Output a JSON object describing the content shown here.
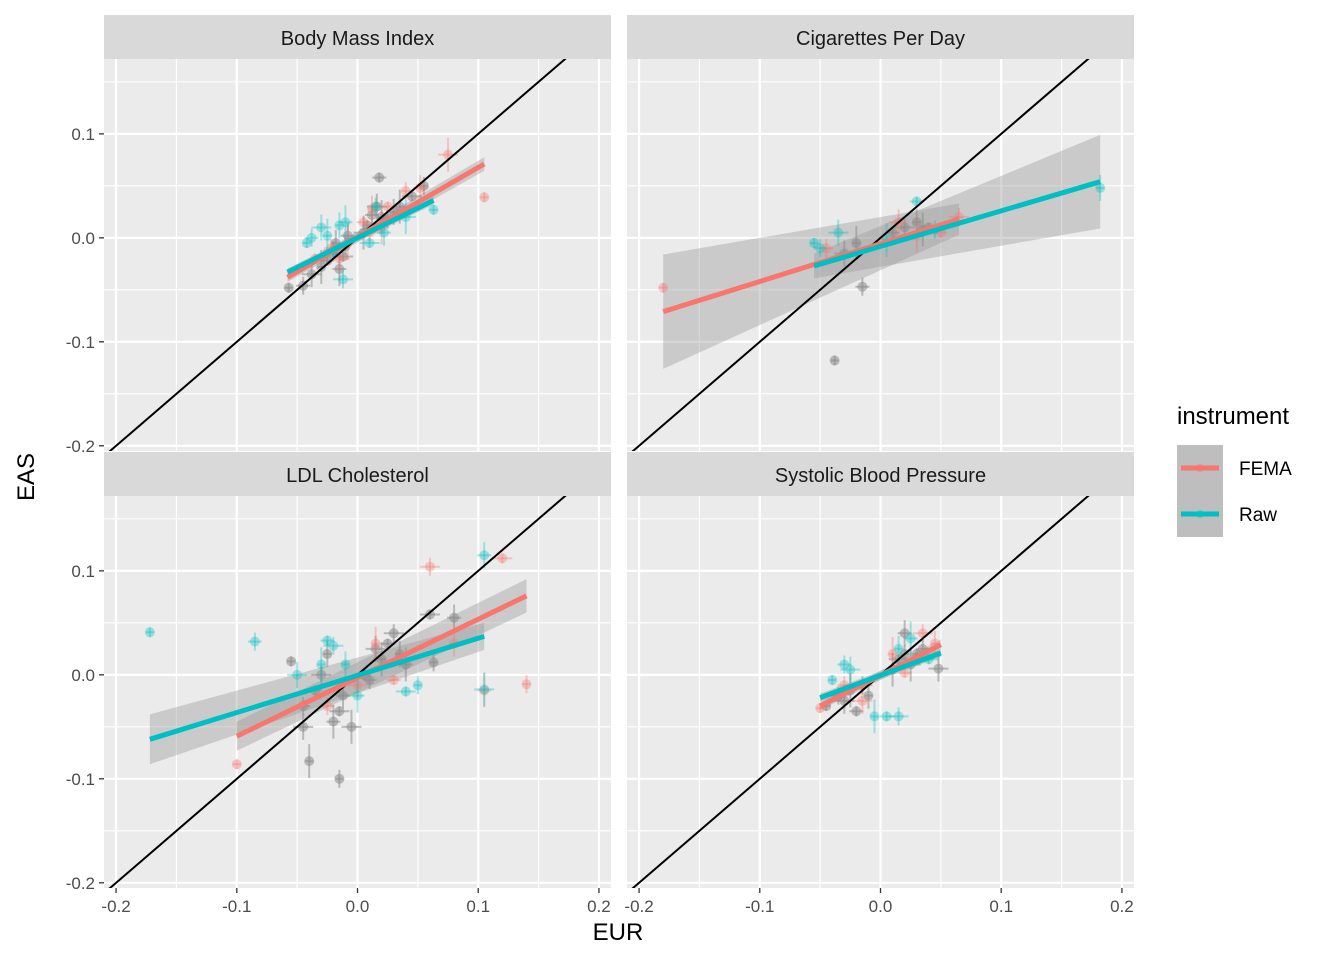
{
  "chart_data": {
    "type": "scatter",
    "facet_layout": "2x2",
    "x_label": "EUR",
    "y_label": "EAS",
    "xlim": [
      -0.21,
      0.21
    ],
    "ylim": [
      -0.205,
      0.172
    ],
    "x_ticks": [
      -0.2,
      -0.1,
      0.0,
      0.1,
      0.2
    ],
    "x_tick_labels": [
      "-0.2",
      "-0.1",
      "0.0",
      "0.1",
      "0.2"
    ],
    "y_ticks": [
      -0.2,
      -0.1,
      0.0,
      0.1
    ],
    "y_tick_labels": [
      "-0.2",
      "-0.1",
      "0.0",
      "0.1"
    ],
    "grid": true,
    "reference_line": {
      "slope": 1,
      "intercept": 0,
      "color": "#000000"
    },
    "legend": {
      "title": "instrument",
      "position": "right",
      "entries": [
        {
          "name": "FEMA",
          "color": "#F8766D"
        },
        {
          "name": "Raw",
          "color": "#00BFC4"
        }
      ]
    },
    "colors": {
      "FEMA": "#F8766D",
      "Raw": "#00BFC4",
      "overlap": "#8c8c8c",
      "panel_bg": "#EBEBEB",
      "strip_bg": "#D9D9D9"
    },
    "panels": [
      {
        "title": "Body Mass Index",
        "fits": [
          {
            "name": "FEMA",
            "x": [
              -0.058,
              0.105
            ],
            "y": [
              -0.038,
              0.071
            ],
            "band": [
              0.0045,
              0.0065
            ]
          },
          {
            "name": "Raw",
            "x": [
              -0.058,
              0.063
            ],
            "y": [
              -0.033,
              0.036
            ],
            "band": [
              0.0035,
              0.004
            ]
          }
        ],
        "points": [
          {
            "name": "overlap",
            "pts": [
              [
                -0.057,
                -0.048
              ],
              [
                -0.045,
                -0.046
              ],
              [
                -0.038,
                -0.035
              ],
              [
                -0.03,
                -0.028
              ],
              [
                -0.025,
                -0.022
              ],
              [
                -0.02,
                -0.012
              ],
              [
                -0.018,
                -0.005
              ],
              [
                -0.015,
                -0.03
              ],
              [
                -0.012,
                -0.018
              ],
              [
                -0.01,
                -0.008
              ],
              [
                -0.008,
                0.002
              ],
              [
                0.005,
                0.005
              ],
              [
                0.008,
                0.012
              ],
              [
                0.012,
                0.022
              ],
              [
                0.016,
                0.03
              ],
              [
                0.02,
                0.02
              ],
              [
                0.018,
                0.058
              ],
              [
                0.025,
                0.018
              ],
              [
                0.03,
                0.025
              ],
              [
                0.035,
                0.03
              ],
              [
                0.045,
                0.04
              ],
              [
                0.055,
                0.05
              ]
            ]
          },
          {
            "name": "FEMA",
            "pts": [
              [
                -0.035,
                -0.02
              ],
              [
                -0.022,
                -0.01
              ],
              [
                -0.015,
                -0.02
              ],
              [
                -0.008,
                -0.005
              ],
              [
                0.005,
                0.015
              ],
              [
                0.01,
                0.005
              ],
              [
                0.012,
                0.028
              ],
              [
                0.02,
                0.01
              ],
              [
                0.025,
                0.03
              ],
              [
                0.04,
                0.045
              ],
              [
                0.052,
                0.048
              ],
              [
                0.075,
                0.08
              ],
              [
                0.105,
                0.039
              ]
            ]
          },
          {
            "name": "Raw",
            "pts": [
              [
                -0.042,
                -0.005
              ],
              [
                -0.038,
                0.0
              ],
              [
                -0.03,
                0.01
              ],
              [
                -0.025,
                0.002
              ],
              [
                -0.02,
                -0.015
              ],
              [
                -0.012,
                -0.04
              ],
              [
                -0.015,
                0.012
              ],
              [
                -0.01,
                0.015
              ],
              [
                0.01,
                -0.005
              ],
              [
                0.015,
                0.03
              ],
              [
                0.022,
                0.005
              ],
              [
                0.04,
                0.02
              ],
              [
                0.063,
                0.027
              ]
            ]
          }
        ]
      },
      {
        "title": "Cigarettes Per Day",
        "fits": [
          {
            "name": "FEMA",
            "x": [
              -0.18,
              0.065
            ],
            "y": [
              -0.071,
              0.018
            ],
            "band": [
              0.055,
              0.015
            ]
          },
          {
            "name": "Raw",
            "x": [
              -0.055,
              0.182
            ],
            "y": [
              -0.027,
              0.054
            ],
            "band": [
              0.012,
              0.045
            ]
          }
        ],
        "points": [
          {
            "name": "overlap",
            "pts": [
              [
                -0.038,
                -0.118
              ],
              [
                -0.015,
                -0.047
              ],
              [
                -0.03,
                -0.015
              ],
              [
                -0.02,
                -0.005
              ],
              [
                0.01,
                0.005
              ],
              [
                0.02,
                0.01
              ],
              [
                0.03,
                0.015
              ],
              [
                0.035,
                0.008
              ],
              [
                0.04,
                0.01
              ]
            ]
          },
          {
            "name": "FEMA",
            "pts": [
              [
                -0.18,
                -0.048
              ],
              [
                -0.045,
                -0.01
              ],
              [
                0.015,
                0.015
              ],
              [
                0.03,
                0.002
              ],
              [
                0.05,
                0.005
              ],
              [
                0.065,
                0.02
              ]
            ]
          },
          {
            "name": "Raw",
            "pts": [
              [
                -0.055,
                -0.005
              ],
              [
                -0.05,
                -0.01
              ],
              [
                -0.035,
                0.005
              ],
              [
                0.005,
                -0.002
              ],
              [
                0.03,
                0.035
              ],
              [
                0.045,
                0.008
              ],
              [
                0.182,
                0.048
              ]
            ]
          }
        ]
      },
      {
        "title": "LDL Cholesterol",
        "fits": [
          {
            "name": "FEMA",
            "x": [
              -0.1,
              0.14
            ],
            "y": [
              -0.059,
              0.076
            ],
            "band": [
              0.014,
              0.016
            ]
          },
          {
            "name": "Raw",
            "x": [
              -0.172,
              0.105
            ],
            "y": [
              -0.062,
              0.037
            ],
            "band": [
              0.024,
              0.013
            ]
          }
        ],
        "points": [
          {
            "name": "overlap",
            "pts": [
              [
                -0.055,
                0.013
              ],
              [
                -0.045,
                -0.03
              ],
              [
                -0.045,
                -0.05
              ],
              [
                -0.04,
                -0.083
              ],
              [
                -0.035,
                -0.015
              ],
              [
                -0.03,
                0.0
              ],
              [
                -0.025,
                0.02
              ],
              [
                -0.02,
                -0.045
              ],
              [
                -0.015,
                -0.035
              ],
              [
                -0.015,
                -0.1
              ],
              [
                -0.012,
                -0.02
              ],
              [
                -0.005,
                -0.05
              ],
              [
                0.005,
                0.0
              ],
              [
                0.01,
                -0.005
              ],
              [
                0.015,
                0.025
              ],
              [
                0.02,
                0.015
              ],
              [
                0.025,
                0.03
              ],
              [
                0.03,
                0.04
              ],
              [
                0.035,
                0.02
              ],
              [
                0.04,
                0.01
              ],
              [
                0.06,
                0.058
              ],
              [
                0.063,
                0.012
              ],
              [
                0.08,
                0.055
              ]
            ]
          },
          {
            "name": "FEMA",
            "pts": [
              [
                -0.1,
                -0.086
              ],
              [
                -0.025,
                -0.03
              ],
              [
                0.0,
                -0.01
              ],
              [
                0.015,
                0.03
              ],
              [
                0.03,
                -0.005
              ],
              [
                0.06,
                0.104
              ],
              [
                0.08,
                0.03
              ],
              [
                0.105,
                -0.015
              ],
              [
                0.12,
                0.112
              ],
              [
                0.14,
                -0.009
              ]
            ]
          },
          {
            "name": "Raw",
            "pts": [
              [
                -0.172,
                0.041
              ],
              [
                -0.085,
                0.032
              ],
              [
                -0.05,
                0.0
              ],
              [
                -0.03,
                0.01
              ],
              [
                -0.025,
                0.033
              ],
              [
                -0.02,
                0.028
              ],
              [
                -0.01,
                0.01
              ],
              [
                0.0,
                -0.02
              ],
              [
                0.04,
                -0.016
              ],
              [
                0.05,
                -0.01
              ],
              [
                0.105,
                0.115
              ],
              [
                0.105,
                -0.014
              ]
            ]
          }
        ]
      },
      {
        "title": "Systolic Blood Pressure",
        "fits": [
          {
            "name": "FEMA",
            "x": [
              -0.05,
              0.05
            ],
            "y": [
              -0.03,
              0.029
            ],
            "band": [
              0.004,
              0.005
            ]
          },
          {
            "name": "Raw",
            "x": [
              -0.05,
              0.05
            ],
            "y": [
              -0.022,
              0.021
            ],
            "band": [
              0.004,
              0.004
            ]
          }
        ],
        "points": [
          {
            "name": "overlap",
            "pts": [
              [
                -0.045,
                -0.03
              ],
              [
                -0.035,
                -0.02
              ],
              [
                -0.03,
                -0.025
              ],
              [
                -0.025,
                -0.015
              ],
              [
                -0.02,
                -0.035
              ],
              [
                -0.015,
                -0.01
              ],
              [
                -0.01,
                -0.02
              ],
              [
                0.01,
                0.005
              ],
              [
                0.015,
                0.015
              ],
              [
                0.02,
                0.02
              ],
              [
                0.02,
                0.04
              ],
              [
                0.025,
                0.01
              ],
              [
                0.03,
                0.02
              ],
              [
                0.035,
                0.025
              ],
              [
                0.048,
                0.006
              ]
            ]
          },
          {
            "name": "FEMA",
            "pts": [
              [
                -0.05,
                -0.032
              ],
              [
                -0.03,
                -0.01
              ],
              [
                -0.015,
                -0.025
              ],
              [
                0.01,
                0.02
              ],
              [
                0.02,
                0.002
              ],
              [
                0.035,
                0.04
              ],
              [
                0.045,
                0.03
              ]
            ]
          },
          {
            "name": "Raw",
            "pts": [
              [
                -0.04,
                -0.005
              ],
              [
                -0.03,
                0.01
              ],
              [
                -0.025,
                0.005
              ],
              [
                -0.005,
                -0.04
              ],
              [
                0.005,
                -0.04
              ],
              [
                0.015,
                -0.04
              ],
              [
                0.015,
                0.025
              ],
              [
                0.025,
                0.035
              ],
              [
                0.04,
                0.015
              ]
            ]
          }
        ]
      }
    ]
  }
}
